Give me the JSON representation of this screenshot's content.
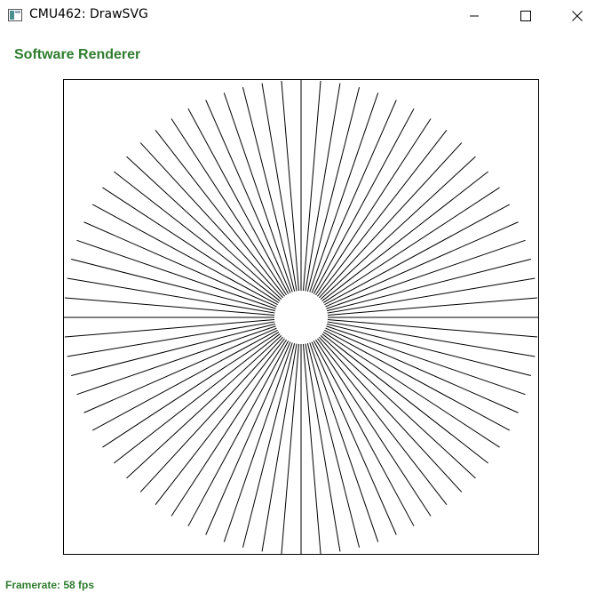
{
  "window": {
    "title": "CMU462: DrawSVG",
    "icon": "app-window-icon",
    "controls": {
      "minimize_icon": "minimize-icon",
      "maximize_icon": "maximize-icon",
      "close_icon": "close-icon"
    }
  },
  "renderer": {
    "label": "Software Renderer",
    "color": "#2f7d2f"
  },
  "canvas": {
    "line_count": 76,
    "line_color": "#000000",
    "background": "#ffffff"
  },
  "status": {
    "framerate_text": "Framerate: 58 fps",
    "color": "#2f7d2f"
  }
}
